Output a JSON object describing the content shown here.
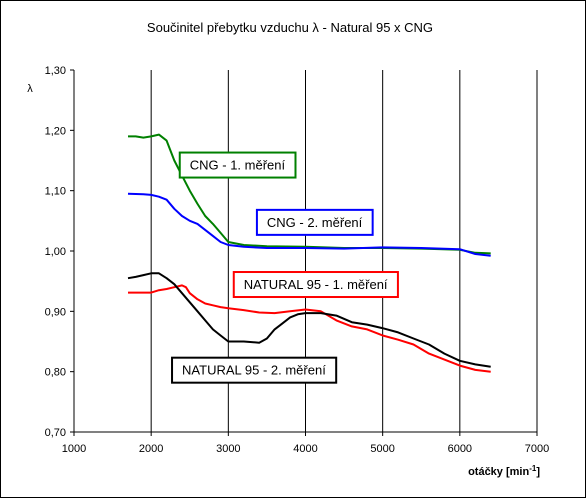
{
  "chart_data": {
    "type": "line",
    "title": "Součinitel přebytku vzduchu λ - Natural 95 x CNG",
    "ylabel": "λ",
    "xlabel": "otáčky [min",
    "xlabel_sup": "-1",
    "xlabel_end": "]",
    "xlim": [
      1000,
      7000
    ],
    "ylim": [
      0.7,
      1.3
    ],
    "xticks": [
      "1000",
      "2000",
      "3000",
      "4000",
      "5000",
      "6000",
      "7000"
    ],
    "yticks": [
      "0,70",
      "0,80",
      "0,90",
      "1,00",
      "1,10",
      "1,20",
      "1,30"
    ],
    "xtick_values": [
      1000,
      2000,
      3000,
      4000,
      5000,
      6000,
      7000
    ],
    "ytick_values": [
      0.7,
      0.8,
      0.9,
      1.0,
      1.1,
      1.2,
      1.3
    ],
    "grid": "vertical",
    "series": [
      {
        "name": "CNG - 1. měření",
        "color": "#008000",
        "x": [
          1700,
          1800,
          1900,
          2000,
          2100,
          2200,
          2300,
          2400,
          2500,
          2600,
          2700,
          2800,
          2900,
          3000,
          3200,
          3500,
          4000,
          4500,
          5000,
          5500,
          6000,
          6200,
          6400
        ],
        "y": [
          1.19,
          1.19,
          1.188,
          1.19,
          1.193,
          1.183,
          1.15,
          1.125,
          1.1,
          1.078,
          1.058,
          1.045,
          1.03,
          1.015,
          1.01,
          1.008,
          1.007,
          1.005,
          1.005,
          1.004,
          1.002,
          0.997,
          0.996
        ]
      },
      {
        "name": "CNG - 2. měření",
        "color": "#0000ff",
        "x": [
          1700,
          1900,
          2000,
          2100,
          2200,
          2300,
          2400,
          2500,
          2600,
          2700,
          2800,
          2900,
          3000,
          3200,
          3500,
          4000,
          4500,
          5000,
          5500,
          6000,
          6200,
          6400
        ],
        "y": [
          1.095,
          1.094,
          1.093,
          1.09,
          1.085,
          1.07,
          1.058,
          1.05,
          1.045,
          1.035,
          1.025,
          1.015,
          1.01,
          1.007,
          1.005,
          1.005,
          1.004,
          1.006,
          1.005,
          1.003,
          0.995,
          0.992
        ]
      },
      {
        "name": "NATURAL 95 - 1. měření",
        "color": "#ff0000",
        "x": [
          1700,
          1800,
          1900,
          2000,
          2100,
          2200,
          2300,
          2400,
          2450,
          2500,
          2600,
          2700,
          2800,
          2900,
          3000,
          3200,
          3400,
          3600,
          3800,
          4000,
          4200,
          4400,
          4600,
          4800,
          5000,
          5200,
          5400,
          5600,
          5800,
          6000,
          6200,
          6400
        ],
        "y": [
          0.931,
          0.931,
          0.931,
          0.931,
          0.935,
          0.937,
          0.94,
          0.943,
          0.94,
          0.93,
          0.92,
          0.913,
          0.91,
          0.907,
          0.905,
          0.902,
          0.898,
          0.897,
          0.9,
          0.903,
          0.9,
          0.885,
          0.875,
          0.87,
          0.86,
          0.853,
          0.845,
          0.83,
          0.82,
          0.81,
          0.803,
          0.8
        ]
      },
      {
        "name": "NATURAL 95 - 2. měření",
        "color": "#000000",
        "x": [
          1700,
          1800,
          1900,
          2000,
          2100,
          2200,
          2300,
          2400,
          2500,
          2600,
          2700,
          2800,
          2900,
          3000,
          3200,
          3400,
          3500,
          3600,
          3700,
          3800,
          3900,
          4000,
          4200,
          4400,
          4600,
          4800,
          5000,
          5200,
          5400,
          5600,
          5800,
          6000,
          6200,
          6400
        ],
        "y": [
          0.955,
          0.957,
          0.96,
          0.963,
          0.963,
          0.955,
          0.945,
          0.93,
          0.915,
          0.9,
          0.885,
          0.87,
          0.86,
          0.85,
          0.85,
          0.848,
          0.855,
          0.87,
          0.88,
          0.89,
          0.895,
          0.897,
          0.897,
          0.893,
          0.882,
          0.878,
          0.872,
          0.865,
          0.855,
          0.845,
          0.83,
          0.818,
          0.812,
          0.808
        ]
      }
    ],
    "annotations": [
      {
        "text": "CNG - 1. měření",
        "color": "#008000",
        "x": 2500,
        "y": 1.135
      },
      {
        "text": "CNG - 2. měření",
        "color": "#0000ff",
        "x": 3500,
        "y": 1.04
      },
      {
        "text": "NATURAL 95 - 1. měření",
        "color": "#ff0000",
        "x": 3200,
        "y": 0.937
      },
      {
        "text": "NATURAL 95 - 2. měření",
        "color": "#000000",
        "x": 2400,
        "y": 0.795
      }
    ]
  }
}
